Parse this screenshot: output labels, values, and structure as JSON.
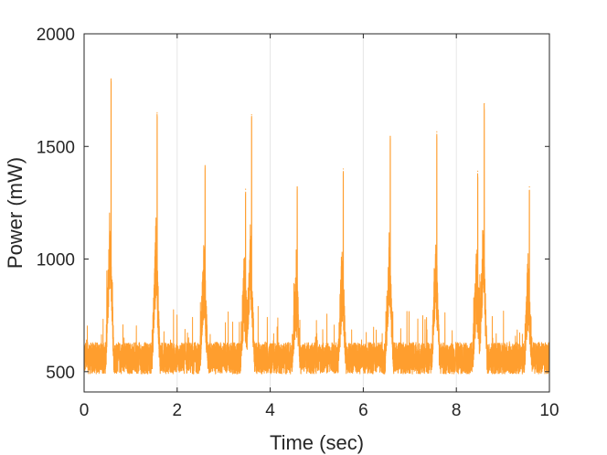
{
  "chart_data": {
    "type": "line",
    "title": "",
    "xlabel": "Time (sec)",
    "ylabel": "Power (mW)",
    "xlim": [
      0,
      10
    ],
    "ylim": [
      410,
      2000
    ],
    "xticks": [
      0,
      2,
      4,
      6,
      8,
      10
    ],
    "xtick_labels": [
      "0",
      "2",
      "4",
      "6",
      "8",
      "10"
    ],
    "yticks": [
      500,
      1000,
      1500,
      2000
    ],
    "ytick_labels": [
      "500",
      "1000",
      "1500",
      "2000"
    ],
    "grid": "vertical lines at x ticks",
    "legend": "none",
    "series_color": "#ff9e2e",
    "series": [
      {
        "baseline_mW": 560,
        "noise_range_mW": [
          430,
          780
        ],
        "spikes": [
          {
            "x": 0.58,
            "y": 1800
          },
          {
            "x": 1.57,
            "y": 1650
          },
          {
            "x": 2.6,
            "y": 1415
          },
          {
            "x": 3.47,
            "y": 1310
          },
          {
            "x": 3.6,
            "y": 1640
          },
          {
            "x": 4.58,
            "y": 1320
          },
          {
            "x": 5.57,
            "y": 1400
          },
          {
            "x": 6.58,
            "y": 1545
          },
          {
            "x": 7.58,
            "y": 1565
          },
          {
            "x": 8.46,
            "y": 1390
          },
          {
            "x": 8.6,
            "y": 1690
          },
          {
            "x": 9.57,
            "y": 1320
          }
        ]
      }
    ]
  }
}
